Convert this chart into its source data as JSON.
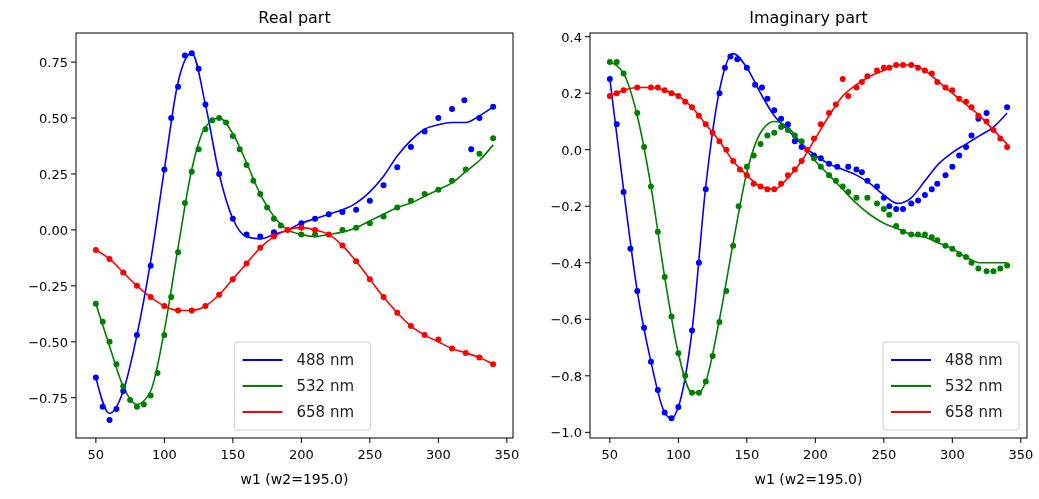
{
  "chart_data": [
    {
      "type": "line",
      "title": "Real part",
      "xlabel": "w1 (w2=195.0)",
      "xlim": [
        35.5,
        354.5
      ],
      "xticks": [
        50,
        100,
        150,
        200,
        250,
        300,
        350
      ],
      "ylim": [
        -0.93,
        0.88
      ],
      "yticks": [
        {
          "value": -0.75,
          "label": "−0.75"
        },
        {
          "value": -0.5,
          "label": "−0.50"
        },
        {
          "value": -0.25,
          "label": "−0.25"
        },
        {
          "value": 0,
          "label": "0.00"
        },
        {
          "value": 0.25,
          "label": "0.25"
        },
        {
          "value": 0.5,
          "label": "0.50"
        },
        {
          "value": 0.75,
          "label": "0.75"
        }
      ],
      "legend": "bottom",
      "series": [
        {
          "name": "488 nm",
          "color": "#0000ff",
          "type": "line",
          "x": [
            50,
            60,
            70,
            80,
            90,
            100,
            110,
            120,
            130,
            140,
            150,
            160,
            170,
            180,
            190,
            200,
            210,
            220,
            230,
            240,
            250,
            260,
            270,
            280,
            290,
            300,
            310,
            320,
            330,
            340
          ],
          "values": [
            -0.66,
            -0.82,
            -0.72,
            -0.47,
            -0.14,
            0.27,
            0.66,
            0.79,
            0.56,
            0.25,
            0.05,
            -0.03,
            -0.04,
            -0.02,
            0.0,
            0.03,
            0.05,
            0.07,
            0.09,
            0.12,
            0.17,
            0.24,
            0.33,
            0.4,
            0.45,
            0.47,
            0.48,
            0.48,
            0.51,
            0.55
          ]
        },
        {
          "name": "532 nm",
          "color": "#008000",
          "type": "line",
          "x": [
            50,
            60,
            70,
            80,
            90,
            100,
            110,
            120,
            130,
            140,
            150,
            160,
            170,
            180,
            190,
            200,
            210,
            220,
            230,
            240,
            250,
            260,
            270,
            280,
            290,
            300,
            310,
            320,
            330,
            340
          ],
          "values": [
            -0.33,
            -0.52,
            -0.7,
            -0.78,
            -0.72,
            -0.45,
            -0.08,
            0.27,
            0.46,
            0.5,
            0.43,
            0.3,
            0.16,
            0.06,
            0.0,
            -0.02,
            -0.03,
            -0.02,
            -0.01,
            0.01,
            0.04,
            0.07,
            0.1,
            0.12,
            0.15,
            0.18,
            0.21,
            0.26,
            0.31,
            0.38
          ]
        },
        {
          "name": "658 nm",
          "color": "#ff0000",
          "type": "line",
          "x": [
            50,
            60,
            70,
            80,
            90,
            100,
            110,
            120,
            130,
            140,
            150,
            160,
            170,
            180,
            190,
            200,
            210,
            220,
            230,
            240,
            250,
            260,
            270,
            280,
            290,
            300,
            310,
            320,
            330,
            340
          ],
          "values": [
            -0.09,
            -0.13,
            -0.19,
            -0.25,
            -0.3,
            -0.34,
            -0.36,
            -0.36,
            -0.34,
            -0.29,
            -0.22,
            -0.15,
            -0.08,
            -0.03,
            0.0,
            0.01,
            0.0,
            -0.02,
            -0.07,
            -0.14,
            -0.22,
            -0.3,
            -0.37,
            -0.43,
            -0.47,
            -0.5,
            -0.53,
            -0.55,
            -0.57,
            -0.6
          ]
        },
        {
          "color": "#0000ff",
          "type": "scatter",
          "marker": "circle",
          "x": [
            50,
            55,
            60,
            65,
            70,
            80,
            90,
            100,
            105,
            110,
            115,
            120,
            125,
            130,
            140,
            150,
            160,
            170,
            180,
            200,
            210,
            220,
            230,
            240,
            250,
            260,
            270,
            280,
            290,
            300,
            310,
            319,
            324,
            330,
            340
          ],
          "values": [
            -0.66,
            -0.79,
            -0.85,
            -0.8,
            -0.72,
            -0.47,
            -0.16,
            0.27,
            0.5,
            0.64,
            0.78,
            0.79,
            0.72,
            0.56,
            0.25,
            0.05,
            -0.02,
            -0.03,
            -0.01,
            0.03,
            0.05,
            0.07,
            0.08,
            0.09,
            0.13,
            0.2,
            0.28,
            0.37,
            0.44,
            0.5,
            0.54,
            0.58,
            0.36,
            0.5,
            0.55
          ]
        },
        {
          "color": "#008000",
          "type": "scatter",
          "marker": "circle",
          "x": [
            50,
            55,
            60,
            65,
            70,
            75,
            80,
            85,
            90,
            95,
            100,
            105,
            110,
            115,
            120,
            125,
            130,
            135,
            140,
            145,
            150,
            155,
            160,
            165,
            170,
            175,
            180,
            185,
            200,
            210,
            230,
            240,
            250,
            260,
            270,
            280,
            290,
            300,
            310,
            320,
            330,
            340
          ],
          "values": [
            -0.33,
            -0.41,
            -0.5,
            -0.6,
            -0.7,
            -0.76,
            -0.79,
            -0.78,
            -0.74,
            -0.64,
            -0.47,
            -0.3,
            -0.1,
            0.12,
            0.26,
            0.36,
            0.45,
            0.49,
            0.5,
            0.48,
            0.42,
            0.36,
            0.29,
            0.22,
            0.16,
            0.1,
            0.05,
            0.02,
            -0.02,
            -0.02,
            0.0,
            0.01,
            0.03,
            0.06,
            0.1,
            0.13,
            0.16,
            0.18,
            0.22,
            0.27,
            0.34,
            0.41
          ]
        },
        {
          "color": "#ff0000",
          "type": "scatter",
          "marker": "circle",
          "x": [
            50,
            60,
            70,
            80,
            90,
            100,
            110,
            120,
            130,
            140,
            150,
            160,
            170,
            180,
            190,
            200,
            210,
            220,
            230,
            240,
            250,
            260,
            270,
            280,
            290,
            300,
            310,
            320,
            330,
            340
          ],
          "values": [
            -0.09,
            -0.13,
            -0.19,
            -0.25,
            -0.3,
            -0.34,
            -0.36,
            -0.36,
            -0.34,
            -0.29,
            -0.22,
            -0.15,
            -0.08,
            -0.03,
            0.0,
            0.01,
            0.0,
            -0.02,
            -0.07,
            -0.14,
            -0.22,
            -0.3,
            -0.37,
            -0.43,
            -0.47,
            -0.49,
            -0.53,
            -0.55,
            -0.57,
            -0.6
          ]
        }
      ]
    },
    {
      "type": "line",
      "title": "Imaginary part",
      "xlabel": "w1 (w2=195.0)",
      "xlim": [
        35.5,
        354.5
      ],
      "xticks": [
        50,
        100,
        150,
        200,
        250,
        300,
        350
      ],
      "ylim": [
        -1.02,
        0.413
      ],
      "yticks": [
        {
          "value": -1,
          "label": "−1.0"
        },
        {
          "value": -0.8,
          "label": "−0.8"
        },
        {
          "value": -0.6,
          "label": "−0.6"
        },
        {
          "value": -0.4,
          "label": "−0.4"
        },
        {
          "value": -0.2,
          "label": "−0.2"
        },
        {
          "value": 0,
          "label": "0.0"
        },
        {
          "value": 0.2,
          "label": "0.2"
        },
        {
          "value": 0.4,
          "label": "0.4"
        }
      ],
      "legend": "bottom right",
      "series": [
        {
          "name": "488 nm",
          "color": "#0000ff",
          "type": "line",
          "x": [
            50,
            60,
            70,
            80,
            90,
            95,
            100,
            110,
            120,
            130,
            140,
            150,
            160,
            170,
            180,
            190,
            200,
            210,
            220,
            230,
            240,
            250,
            260,
            270,
            280,
            290,
            300,
            310,
            320,
            330,
            340
          ],
          "values": [
            0.25,
            -0.14,
            -0.5,
            -0.75,
            -0.93,
            -0.95,
            -0.91,
            -0.64,
            -0.13,
            0.21,
            0.34,
            0.29,
            0.2,
            0.12,
            0.07,
            0.02,
            -0.02,
            -0.05,
            -0.07,
            -0.09,
            -0.12,
            -0.16,
            -0.19,
            -0.17,
            -0.11,
            -0.05,
            -0.01,
            0.02,
            0.05,
            0.08,
            0.13
          ]
        },
        {
          "name": "532 nm",
          "color": "#008000",
          "type": "line",
          "x": [
            50,
            60,
            70,
            80,
            90,
            100,
            110,
            115,
            120,
            130,
            140,
            150,
            160,
            170,
            180,
            190,
            200,
            210,
            220,
            230,
            240,
            250,
            260,
            270,
            280,
            290,
            300,
            310,
            320,
            330,
            340
          ],
          "values": [
            0.31,
            0.27,
            0.12,
            -0.13,
            -0.45,
            -0.72,
            -0.86,
            -0.86,
            -0.82,
            -0.6,
            -0.33,
            -0.08,
            0.06,
            0.1,
            0.08,
            0.02,
            -0.04,
            -0.09,
            -0.14,
            -0.19,
            -0.23,
            -0.26,
            -0.28,
            -0.3,
            -0.31,
            -0.33,
            -0.35,
            -0.38,
            -0.4,
            -0.4,
            -0.4
          ]
        },
        {
          "name": "658 nm",
          "color": "#ff0000",
          "type": "line",
          "x": [
            50,
            60,
            70,
            80,
            90,
            100,
            110,
            120,
            130,
            140,
            150,
            160,
            170,
            180,
            190,
            200,
            210,
            220,
            230,
            240,
            250,
            260,
            270,
            280,
            290,
            300,
            310,
            320,
            330,
            340
          ],
          "values": [
            0.19,
            0.21,
            0.22,
            0.22,
            0.21,
            0.19,
            0.15,
            0.09,
            0.03,
            -0.04,
            -0.09,
            -0.13,
            -0.14,
            -0.1,
            -0.04,
            0.04,
            0.12,
            0.19,
            0.23,
            0.26,
            0.28,
            0.3,
            0.3,
            0.28,
            0.24,
            0.2,
            0.16,
            0.12,
            0.07,
            0.02
          ]
        },
        {
          "color": "#0000ff",
          "type": "scatter",
          "marker": "circle",
          "x": [
            50,
            55,
            60,
            65,
            70,
            75,
            80,
            85,
            90,
            95,
            100,
            110,
            115,
            120,
            130,
            134,
            138,
            143,
            150,
            156,
            161,
            165,
            170,
            175,
            180,
            185,
            190,
            199,
            204,
            210,
            216,
            224,
            230,
            234,
            238,
            245,
            250,
            254,
            259,
            264,
            270,
            275,
            280,
            285,
            289,
            295,
            300,
            305,
            310,
            314,
            319,
            325,
            340
          ],
          "values": [
            0.25,
            0.09,
            -0.15,
            -0.35,
            -0.5,
            -0.63,
            -0.75,
            -0.85,
            -0.93,
            -0.95,
            -0.91,
            -0.64,
            -0.4,
            -0.14,
            0.2,
            0.29,
            0.33,
            0.32,
            0.29,
            0.23,
            0.22,
            0.18,
            0.14,
            0.11,
            0.09,
            0.03,
            0.01,
            -0.02,
            -0.03,
            -0.05,
            -0.06,
            -0.06,
            -0.07,
            -0.08,
            -0.11,
            -0.13,
            -0.17,
            -0.2,
            -0.21,
            -0.21,
            -0.19,
            -0.18,
            -0.16,
            -0.14,
            -0.12,
            -0.09,
            -0.06,
            -0.02,
            0.01,
            0.05,
            0.11,
            0.13,
            0.15
          ]
        },
        {
          "color": "#008000",
          "type": "scatter",
          "marker": "circle",
          "x": [
            50,
            55,
            60,
            70,
            75,
            80,
            85,
            90,
            95,
            100,
            105,
            110,
            115,
            120,
            125,
            130,
            135,
            140,
            144,
            150,
            155,
            160,
            165,
            170,
            175,
            180,
            185,
            190,
            199,
            204,
            210,
            215,
            220,
            224,
            230,
            238,
            245,
            250,
            254,
            259,
            264,
            270,
            275,
            280,
            285,
            289,
            295,
            300,
            305,
            310,
            314,
            319,
            325,
            330,
            335,
            340
          ],
          "values": [
            0.31,
            0.31,
            0.27,
            0.13,
            0.01,
            -0.13,
            -0.29,
            -0.45,
            -0.59,
            -0.72,
            -0.8,
            -0.86,
            -0.86,
            -0.82,
            -0.73,
            -0.61,
            -0.5,
            -0.34,
            -0.2,
            -0.06,
            -0.02,
            0.02,
            0.05,
            0.06,
            0.08,
            0.07,
            0.05,
            0.03,
            -0.03,
            -0.06,
            -0.09,
            -0.11,
            -0.13,
            -0.15,
            -0.17,
            -0.17,
            -0.19,
            -0.21,
            -0.23,
            -0.27,
            -0.29,
            -0.3,
            -0.3,
            -0.3,
            -0.31,
            -0.32,
            -0.34,
            -0.35,
            -0.37,
            -0.38,
            -0.4,
            -0.42,
            -0.43,
            -0.43,
            -0.42,
            -0.41
          ]
        },
        {
          "color": "#ff0000",
          "type": "scatter",
          "marker": "circle",
          "x": [
            50,
            55,
            60,
            70,
            80,
            85,
            90,
            95,
            100,
            105,
            110,
            115,
            120,
            125,
            130,
            135,
            140,
            145,
            150,
            155,
            160,
            165,
            170,
            175,
            180,
            185,
            190,
            194,
            199,
            204,
            210,
            215,
            220,
            224,
            230,
            234,
            238,
            245,
            250,
            254,
            259,
            264,
            270,
            275,
            280,
            285,
            289,
            295,
            300,
            305,
            310,
            314,
            319,
            325,
            330,
            335,
            340
          ],
          "values": [
            0.19,
            0.2,
            0.21,
            0.22,
            0.22,
            0.22,
            0.21,
            0.2,
            0.19,
            0.17,
            0.15,
            0.12,
            0.09,
            0.06,
            0.03,
            0.0,
            -0.04,
            -0.07,
            -0.09,
            -0.12,
            -0.13,
            -0.14,
            -0.14,
            -0.12,
            -0.09,
            -0.07,
            -0.04,
            0.0,
            0.04,
            0.09,
            0.13,
            0.16,
            0.25,
            0.19,
            0.22,
            0.24,
            0.26,
            0.28,
            0.29,
            0.29,
            0.3,
            0.3,
            0.3,
            0.29,
            0.28,
            0.27,
            0.24,
            0.22,
            0.21,
            0.18,
            0.17,
            0.15,
            0.12,
            0.1,
            0.07,
            0.04,
            0.01
          ]
        }
      ]
    }
  ]
}
